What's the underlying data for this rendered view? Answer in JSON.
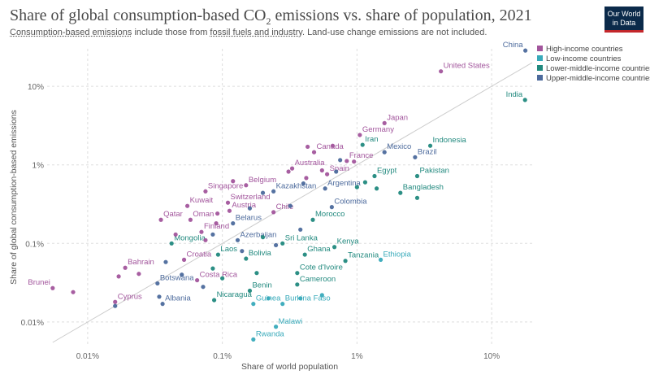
{
  "header": {
    "title_main": "Share of global consumption-based CO",
    "title_sub": "2",
    "title_end": " emissions vs. share of population, 2021",
    "subtitle_link1": "Consumption-based emissions",
    "subtitle_mid": " include those from ",
    "subtitle_link2": "fossil fuels and industry",
    "subtitle_end": ". Land-use change emissions are not included."
  },
  "logo": {
    "line1": "Our World",
    "line2": "in Data"
  },
  "colors": {
    "High-income countries": "#a2559c",
    "Low-income countries": "#38aaba",
    "Lower-middle-income countries": "#21897e",
    "Upper-middle-income countries": "#4c6a9c"
  },
  "chart_data": {
    "type": "scatter",
    "title": "Share of global consumption-based CO₂ emissions vs. share of population, 2021",
    "xlabel": "Share of world population",
    "ylabel": "Share of global consumption-based emissions",
    "xscale": "log",
    "yscale": "log",
    "xlim": [
      0.005,
      20
    ],
    "ylim": [
      0.005,
      30
    ],
    "xticks": [
      "0.01%",
      "0.1%",
      "1%",
      "10%"
    ],
    "yticks": [
      "0.01%",
      "0.1%",
      "1%",
      "10%"
    ],
    "grid": true,
    "legend_position": "top-right",
    "legend": [
      "High-income countries",
      "Low-income countries",
      "Lower-middle-income countries",
      "Upper-middle-income countries"
    ],
    "points": [
      {
        "label": "China",
        "x": 17.8,
        "y": 28.5,
        "group": "Upper-middle-income countries"
      },
      {
        "label": "India",
        "x": 17.7,
        "y": 6.7,
        "group": "Lower-middle-income countries"
      },
      {
        "label": "United States",
        "x": 4.2,
        "y": 15.5,
        "group": "High-income countries"
      },
      {
        "label": "Japan",
        "x": 1.6,
        "y": 3.4,
        "group": "High-income countries"
      },
      {
        "label": "Germany",
        "x": 1.05,
        "y": 2.4,
        "group": "High-income countries"
      },
      {
        "label": "Iran",
        "x": 1.1,
        "y": 1.8,
        "group": "Lower-middle-income countries"
      },
      {
        "label": "Indonesia",
        "x": 3.5,
        "y": 1.75,
        "group": "Lower-middle-income countries"
      },
      {
        "label": "Mexico",
        "x": 1.6,
        "y": 1.45,
        "group": "Upper-middle-income countries"
      },
      {
        "label": "Brazil",
        "x": 2.7,
        "y": 1.25,
        "group": "Upper-middle-income countries"
      },
      {
        "label": "Canada",
        "x": 0.48,
        "y": 1.45,
        "group": "High-income countries"
      },
      {
        "label": "France",
        "x": 0.84,
        "y": 1.12,
        "group": "High-income countries"
      },
      {
        "label": "Australia",
        "x": 0.33,
        "y": 0.9,
        "group": "High-income countries"
      },
      {
        "label": "Spain",
        "x": 0.6,
        "y": 0.76,
        "group": "High-income countries"
      },
      {
        "label": "Egypt",
        "x": 1.35,
        "y": 0.72,
        "group": "Lower-middle-income countries"
      },
      {
        "label": "Pakistan",
        "x": 2.8,
        "y": 0.72,
        "group": "Lower-middle-income countries"
      },
      {
        "label": "Belgium",
        "x": 0.15,
        "y": 0.55,
        "group": "High-income countries"
      },
      {
        "label": "Argentina",
        "x": 0.58,
        "y": 0.5,
        "group": "Upper-middle-income countries"
      },
      {
        "label": "Kazakhstan",
        "x": 0.24,
        "y": 0.46,
        "group": "Upper-middle-income countries"
      },
      {
        "label": "Singapore",
        "x": 0.075,
        "y": 0.46,
        "group": "High-income countries"
      },
      {
        "label": "Bangladesh",
        "x": 2.1,
        "y": 0.44,
        "group": "Lower-middle-income countries"
      },
      {
        "label": "Switzerland",
        "x": 0.11,
        "y": 0.33,
        "group": "High-income countries"
      },
      {
        "label": "Kuwait",
        "x": 0.055,
        "y": 0.3,
        "group": "High-income countries"
      },
      {
        "label": "Colombia",
        "x": 0.65,
        "y": 0.29,
        "group": "Upper-middle-income countries"
      },
      {
        "label": "Austria",
        "x": 0.113,
        "y": 0.26,
        "group": "High-income countries"
      },
      {
        "label": "Chile",
        "x": 0.24,
        "y": 0.25,
        "group": "High-income countries"
      },
      {
        "label": "Qatar",
        "x": 0.035,
        "y": 0.2,
        "group": "High-income countries"
      },
      {
        "label": "Oman",
        "x": 0.058,
        "y": 0.2,
        "group": "High-income countries"
      },
      {
        "label": "Morocco",
        "x": 0.47,
        "y": 0.2,
        "group": "Lower-middle-income countries"
      },
      {
        "label": "Belarus",
        "x": 0.12,
        "y": 0.18,
        "group": "Upper-middle-income countries"
      },
      {
        "label": "Finland",
        "x": 0.07,
        "y": 0.14,
        "group": "High-income countries"
      },
      {
        "label": "Azerbaijan",
        "x": 0.13,
        "y": 0.11,
        "group": "Upper-middle-income countries"
      },
      {
        "label": "Mongolia",
        "x": 0.042,
        "y": 0.1,
        "group": "Lower-middle-income countries"
      },
      {
        "label": "Sri Lanka",
        "x": 0.28,
        "y": 0.1,
        "group": "Lower-middle-income countries"
      },
      {
        "label": "Kenya",
        "x": 0.68,
        "y": 0.09,
        "group": "Lower-middle-income countries"
      },
      {
        "label": "Laos",
        "x": 0.093,
        "y": 0.072,
        "group": "Lower-middle-income countries"
      },
      {
        "label": "Ghana",
        "x": 0.41,
        "y": 0.072,
        "group": "Lower-middle-income countries"
      },
      {
        "label": "Croatia",
        "x": 0.052,
        "y": 0.062,
        "group": "High-income countries"
      },
      {
        "label": "Bolivia",
        "x": 0.15,
        "y": 0.064,
        "group": "Lower-middle-income countries"
      },
      {
        "label": "Tanzania",
        "x": 0.82,
        "y": 0.06,
        "group": "Lower-middle-income countries"
      },
      {
        "label": "Ethiopia",
        "x": 1.5,
        "y": 0.062,
        "group": "Low-income countries"
      },
      {
        "label": "Bahrain",
        "x": 0.019,
        "y": 0.049,
        "group": "High-income countries"
      },
      {
        "label": "Costa Rica",
        "x": 0.065,
        "y": 0.034,
        "group": "High-income countries"
      },
      {
        "label": "Botswana",
        "x": 0.033,
        "y": 0.031,
        "group": "Upper-middle-income countries"
      },
      {
        "label": "Cote d'Ivoire",
        "x": 0.36,
        "y": 0.042,
        "group": "Lower-middle-income countries"
      },
      {
        "label": "Cameroon",
        "x": 0.36,
        "y": 0.03,
        "group": "Lower-middle-income countries"
      },
      {
        "label": "Brunei",
        "x": 0.0055,
        "y": 0.027,
        "group": "High-income countries"
      },
      {
        "label": "Benin",
        "x": 0.16,
        "y": 0.025,
        "group": "Lower-middle-income countries"
      },
      {
        "label": "Nicaragua",
        "x": 0.087,
        "y": 0.019,
        "group": "Lower-middle-income countries"
      },
      {
        "label": "Cyprus",
        "x": 0.016,
        "y": 0.018,
        "group": "High-income countries"
      },
      {
        "label": "Albania",
        "x": 0.036,
        "y": 0.017,
        "group": "Upper-middle-income countries"
      },
      {
        "label": "Guinea",
        "x": 0.17,
        "y": 0.017,
        "group": "Low-income countries"
      },
      {
        "label": "Burkina Faso",
        "x": 0.28,
        "y": 0.017,
        "group": "Low-income countries"
      },
      {
        "label": "Malawi",
        "x": 0.25,
        "y": 0.0087,
        "group": "Low-income countries"
      },
      {
        "label": "Rwanda",
        "x": 0.17,
        "y": 0.006,
        "group": "Low-income countries"
      },
      {
        "label": "",
        "x": 0.0078,
        "y": 0.024,
        "group": "High-income countries"
      },
      {
        "label": "",
        "x": 0.017,
        "y": 0.038,
        "group": "High-income countries"
      },
      {
        "label": "",
        "x": 0.024,
        "y": 0.041,
        "group": "High-income countries"
      },
      {
        "label": "",
        "x": 0.016,
        "y": 0.016,
        "group": "Upper-middle-income countries"
      },
      {
        "label": "",
        "x": 0.034,
        "y": 0.021,
        "group": "Upper-middle-income countries"
      },
      {
        "label": "",
        "x": 0.038,
        "y": 0.058,
        "group": "Upper-middle-income countries"
      },
      {
        "label": "",
        "x": 0.05,
        "y": 0.04,
        "group": "Upper-middle-income countries"
      },
      {
        "label": "",
        "x": 0.072,
        "y": 0.028,
        "group": "Upper-middle-income countries"
      },
      {
        "label": "",
        "x": 0.085,
        "y": 0.048,
        "group": "Lower-middle-income countries"
      },
      {
        "label": "",
        "x": 0.1,
        "y": 0.036,
        "group": "Lower-middle-income countries"
      },
      {
        "label": "",
        "x": 0.14,
        "y": 0.08,
        "group": "Upper-middle-income countries"
      },
      {
        "label": "",
        "x": 0.18,
        "y": 0.042,
        "group": "Lower-middle-income countries"
      },
      {
        "label": "",
        "x": 0.22,
        "y": 0.02,
        "group": "Low-income countries"
      },
      {
        "label": "",
        "x": 0.38,
        "y": 0.02,
        "group": "Low-income countries"
      },
      {
        "label": "",
        "x": 0.55,
        "y": 0.022,
        "group": "Low-income countries"
      },
      {
        "label": "",
        "x": 0.045,
        "y": 0.13,
        "group": "High-income countries"
      },
      {
        "label": "",
        "x": 0.075,
        "y": 0.11,
        "group": "High-income countries"
      },
      {
        "label": "",
        "x": 0.085,
        "y": 0.13,
        "group": "Upper-middle-income countries"
      },
      {
        "label": "",
        "x": 0.2,
        "y": 0.12,
        "group": "Lower-middle-income countries"
      },
      {
        "label": "",
        "x": 0.25,
        "y": 0.095,
        "group": "Upper-middle-income countries"
      },
      {
        "label": "",
        "x": 0.38,
        "y": 0.15,
        "group": "Upper-middle-income countries"
      },
      {
        "label": "",
        "x": 0.09,
        "y": 0.18,
        "group": "High-income countries"
      },
      {
        "label": "",
        "x": 0.092,
        "y": 0.24,
        "group": "High-income countries"
      },
      {
        "label": "",
        "x": 0.12,
        "y": 0.62,
        "group": "High-income countries"
      },
      {
        "label": "",
        "x": 0.2,
        "y": 0.44,
        "group": "Upper-middle-income countries"
      },
      {
        "label": "",
        "x": 0.55,
        "y": 0.85,
        "group": "High-income countries"
      },
      {
        "label": "",
        "x": 0.42,
        "y": 0.68,
        "group": "High-income countries"
      },
      {
        "label": "",
        "x": 0.75,
        "y": 1.15,
        "group": "Upper-middle-income countries"
      },
      {
        "label": "",
        "x": 0.7,
        "y": 0.82,
        "group": "Upper-middle-income countries"
      },
      {
        "label": "",
        "x": 1.15,
        "y": 0.6,
        "group": "Lower-middle-income countries"
      },
      {
        "label": "",
        "x": 1.4,
        "y": 0.5,
        "group": "Lower-middle-income countries"
      },
      {
        "label": "",
        "x": 0.66,
        "y": 1.75,
        "group": "High-income countries"
      },
      {
        "label": "",
        "x": 0.43,
        "y": 1.7,
        "group": "High-income countries"
      },
      {
        "label": "",
        "x": 0.31,
        "y": 0.82,
        "group": "High-income countries"
      },
      {
        "label": "",
        "x": 1.0,
        "y": 0.52,
        "group": "Lower-middle-income countries"
      },
      {
        "label": "",
        "x": 0.95,
        "y": 1.1,
        "group": "High-income countries"
      },
      {
        "label": "",
        "x": 2.8,
        "y": 0.38,
        "group": "Lower-middle-income countries"
      },
      {
        "label": "",
        "x": 0.32,
        "y": 0.3,
        "group": "Upper-middle-income countries"
      },
      {
        "label": "",
        "x": 0.16,
        "y": 0.28,
        "group": "Upper-middle-income countries"
      },
      {
        "label": "",
        "x": 0.4,
        "y": 0.58,
        "group": "Upper-middle-income countries"
      }
    ]
  }
}
